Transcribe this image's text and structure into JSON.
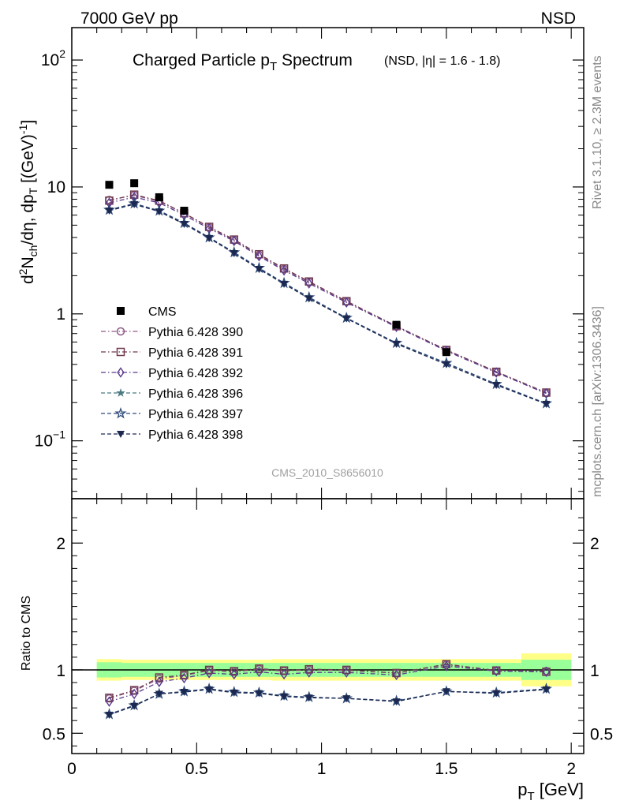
{
  "header": {
    "left": "7000 GeV pp",
    "right": "NSD"
  },
  "side_labels": {
    "rivet": "Rivet 3.1.10, ≥ 2.3M events",
    "mcplots": "mcplots.cern.ch [arXiv:1306.3436]"
  },
  "analysis_id": "CMS_2010_S8656010",
  "chart_data": [
    {
      "type": "scatter",
      "title_main": "Charged Particle p",
      "title_sub": "T",
      "title_main2": " Spectrum",
      "title_note": "(NSD, |η| = 1.6 - 1.8)",
      "ylabel": "d²N_ch/dη, dp_T [(GeV)⁻¹]",
      "ylabel_parts": {
        "d": "d",
        "sup2": "2",
        "n": "N",
        "sub_ch": "ch",
        "mid": "/dη, dp",
        "sub_t": "T",
        "tail": " [(GeV)",
        "sup_m1": "-1",
        "close": "]"
      },
      "yscale": "log",
      "ylim": [
        0.035,
        180
      ],
      "xlim": [
        0,
        2.05
      ],
      "yticks": [
        {
          "value": 0.1,
          "base": "10",
          "exp": "−1"
        },
        {
          "value": 1,
          "base": "1",
          "exp": ""
        },
        {
          "value": 10,
          "base": "10",
          "exp": ""
        },
        {
          "value": 100,
          "base": "10",
          "exp": "2"
        }
      ],
      "x": [
        0.15,
        0.25,
        0.35,
        0.45,
        0.55,
        0.65,
        0.75,
        0.85,
        0.95,
        1.1,
        1.3,
        1.5,
        1.7,
        1.9
      ],
      "legend_position": "middle-left",
      "series": [
        {
          "name": "CMS",
          "marker": "filled-square",
          "color": "#000000",
          "values": [
            10.4,
            10.7,
            8.3,
            6.5,
            null,
            null,
            null,
            null,
            null,
            null,
            0.82,
            0.5,
            null,
            null
          ]
        },
        {
          "name": "Pythia 6.428 390",
          "marker": "open-circle",
          "line": "dash-dot",
          "color": "#8e5a88",
          "values": [
            7.9,
            8.6,
            7.7,
            6.2,
            4.8,
            3.8,
            2.9,
            2.25,
            1.78,
            1.25,
            0.8,
            0.52,
            0.35,
            0.238
          ]
        },
        {
          "name": "Pythia 6.428 391",
          "marker": "open-square",
          "line": "dash-dot",
          "color": "#6e3a4e",
          "values": [
            7.8,
            8.7,
            7.8,
            6.2,
            4.85,
            3.85,
            2.95,
            2.28,
            1.8,
            1.26,
            0.8,
            0.52,
            0.35,
            0.24
          ]
        },
        {
          "name": "Pythia 6.428 392",
          "marker": "open-diamond",
          "line": "dash-dot",
          "color": "#5a3a8e",
          "values": [
            7.5,
            8.3,
            7.5,
            6.0,
            4.7,
            3.75,
            2.85,
            2.2,
            1.74,
            1.23,
            0.79,
            0.51,
            0.345,
            0.236
          ]
        },
        {
          "name": "Pythia 6.428 396",
          "marker": "filled-star",
          "line": "dashed",
          "color": "#4a7a82",
          "values": [
            6.6,
            7.4,
            6.5,
            5.2,
            4.0,
            3.05,
            2.3,
            1.75,
            1.35,
            0.93,
            0.59,
            0.41,
            0.28,
            0.197
          ]
        },
        {
          "name": "Pythia 6.428 397",
          "marker": "open-star",
          "line": "dashed",
          "color": "#2e4a7a",
          "values": [
            6.6,
            7.4,
            6.5,
            5.2,
            4.0,
            3.05,
            2.3,
            1.75,
            1.35,
            0.93,
            0.59,
            0.41,
            0.28,
            0.197
          ]
        },
        {
          "name": "Pythia 6.428 398",
          "marker": "filled-triangle-down",
          "line": "dashed",
          "color": "#1c2850",
          "values": [
            6.5,
            7.3,
            6.4,
            5.1,
            3.95,
            3.0,
            2.25,
            1.72,
            1.32,
            0.92,
            0.58,
            0.4,
            0.275,
            0.195
          ]
        }
      ]
    },
    {
      "type": "scatter",
      "ylabel": "Ratio to CMS",
      "xlabel_main": "p",
      "xlabel_sub": "T",
      "xlabel_unit": " [GeV]",
      "ylim": [
        0.34,
        2.35
      ],
      "xlim": [
        0,
        2.05
      ],
      "yticks": [
        0.5,
        1,
        2
      ],
      "ytick_labels": [
        "0.5",
        "1",
        "2"
      ],
      "xticks": [
        0,
        0.5,
        1,
        1.5,
        2
      ],
      "xtick_labels": [
        "0",
        "0.5",
        "1",
        "1.5",
        "2"
      ],
      "reference_line": 1,
      "bands": {
        "bin_edges": [
          0.1,
          0.2,
          0.3,
          0.4,
          0.5,
          0.6,
          0.7,
          0.8,
          0.9,
          1.0,
          1.2,
          1.4,
          1.6,
          1.8,
          2.0
        ],
        "inner_color": "#99ff99",
        "outer_color": "#ffff88",
        "inner_halfwidth": [
          0.06,
          0.055,
          0.055,
          0.055,
          0.055,
          0.055,
          0.055,
          0.055,
          0.055,
          0.055,
          0.055,
          0.055,
          0.055,
          0.08
        ],
        "outer_halfwidth": [
          0.085,
          0.08,
          0.08,
          0.08,
          0.08,
          0.08,
          0.08,
          0.085,
          0.085,
          0.085,
          0.085,
          0.085,
          0.085,
          0.13
        ]
      },
      "x": [
        0.15,
        0.25,
        0.35,
        0.45,
        0.55,
        0.65,
        0.75,
        0.85,
        0.95,
        1.1,
        1.3,
        1.5,
        1.7,
        1.9
      ],
      "series": [
        {
          "name": "Pythia 6.428 390",
          "values": [
            0.775,
            0.835,
            0.93,
            0.955,
            0.995,
            0.985,
            1.005,
            0.99,
            1.0,
            0.995,
            0.975,
            1.04,
            0.995,
            0.99
          ]
        },
        {
          "name": "Pythia 6.428 391",
          "values": [
            0.78,
            0.84,
            0.94,
            0.96,
            1.0,
            0.99,
            1.01,
            0.995,
            1.005,
            1.0,
            0.975,
            1.045,
            0.995,
            0.985
          ]
        },
        {
          "name": "Pythia 6.428 392",
          "values": [
            0.75,
            0.81,
            0.905,
            0.935,
            0.975,
            0.965,
            0.985,
            0.965,
            0.98,
            0.98,
            0.96,
            1.03,
            0.99,
            0.985
          ]
        },
        {
          "name": "Pythia 6.428 396",
          "values": [
            0.65,
            0.72,
            0.81,
            0.83,
            0.85,
            0.825,
            0.82,
            0.795,
            0.785,
            0.775,
            0.755,
            0.83,
            0.82,
            0.85
          ]
        },
        {
          "name": "Pythia 6.428 397",
          "values": [
            0.65,
            0.72,
            0.81,
            0.83,
            0.85,
            0.825,
            0.82,
            0.795,
            0.785,
            0.775,
            0.755,
            0.83,
            0.82,
            0.85
          ]
        },
        {
          "name": "Pythia 6.428 398",
          "values": [
            0.645,
            0.715,
            0.81,
            0.825,
            0.845,
            0.82,
            0.815,
            0.79,
            0.78,
            0.775,
            0.75,
            0.83,
            0.815,
            0.845
          ]
        }
      ]
    }
  ]
}
